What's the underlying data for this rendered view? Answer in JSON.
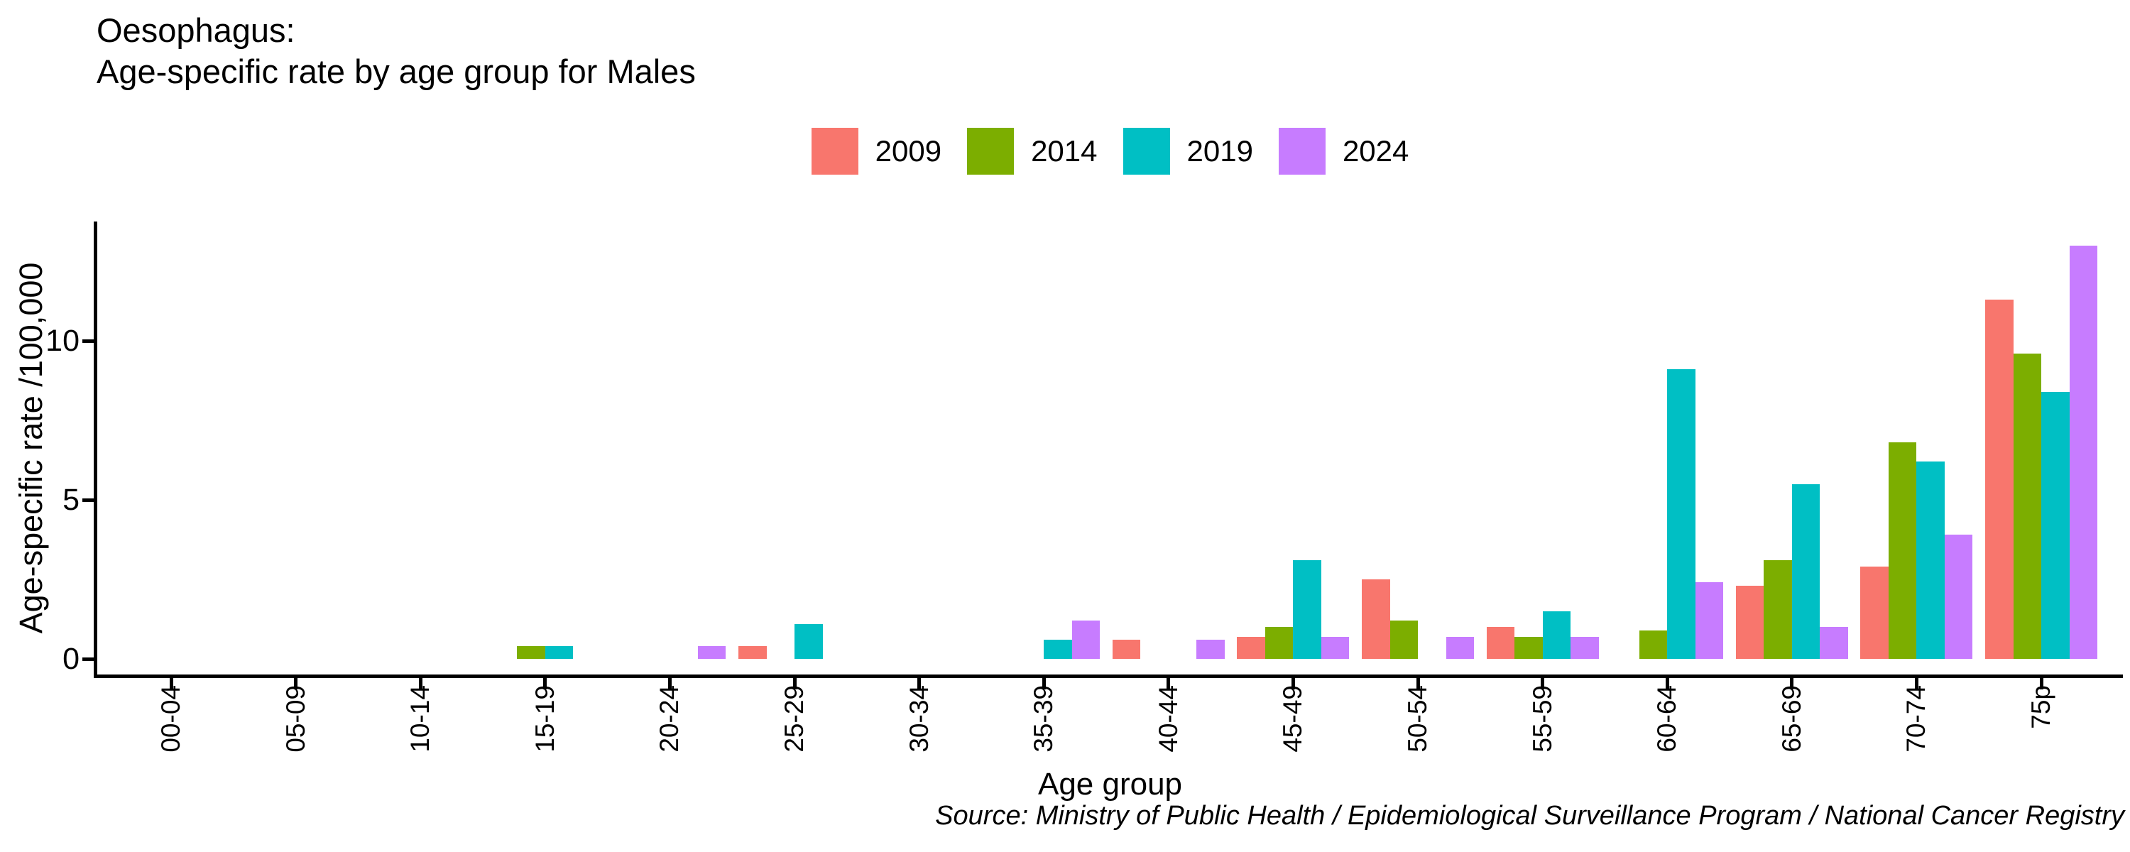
{
  "title": {
    "line1": "Oesophagus:",
    "line2": "Age-specific rate by age group for Males"
  },
  "axes": {
    "y_label": "Age-specific rate /100,000",
    "x_label": "Age group"
  },
  "source": "Source: Ministry of Public Health / Epidemiological Surveillance Program / National Cancer Registry",
  "chart_data": {
    "type": "bar",
    "title": "Oesophagus: Age-specific rate by age group for Males",
    "xlabel": "Age group",
    "ylabel": "Age-specific rate /100,000",
    "categories": [
      "00-04",
      "05-09",
      "10-14",
      "15-19",
      "20-24",
      "25-29",
      "30-34",
      "35-39",
      "40-44",
      "45-49",
      "50-54",
      "55-59",
      "60-64",
      "65-69",
      "70-74",
      "75p"
    ],
    "series": [
      {
        "name": "2009",
        "color": "#F8766D",
        "values": [
          0,
          0,
          0,
          0,
          0,
          0.4,
          0,
          0,
          0.6,
          0.7,
          2.5,
          1.0,
          0,
          2.3,
          2.9,
          11.3
        ]
      },
      {
        "name": "2014",
        "color": "#7CAE00",
        "values": [
          0,
          0,
          0,
          0.4,
          0,
          0,
          0,
          0,
          0,
          1.0,
          1.2,
          0.7,
          0.9,
          3.1,
          6.8,
          9.6
        ]
      },
      {
        "name": "2019",
        "color": "#00BFC4",
        "values": [
          0,
          0,
          0,
          0.4,
          0,
          1.1,
          0,
          0.6,
          0,
          3.1,
          0,
          1.5,
          9.1,
          5.5,
          6.2,
          8.4
        ]
      },
      {
        "name": "2024",
        "color": "#C77CFF",
        "values": [
          0,
          0,
          0,
          0,
          0.4,
          0,
          0,
          1.2,
          0.6,
          0.7,
          0.7,
          0.7,
          2.4,
          1.0,
          3.9,
          13.0
        ]
      }
    ],
    "yticks": [
      0,
      5,
      10
    ],
    "ylim": [
      0,
      13.8
    ],
    "grid": false,
    "legend_position": "top-center"
  }
}
